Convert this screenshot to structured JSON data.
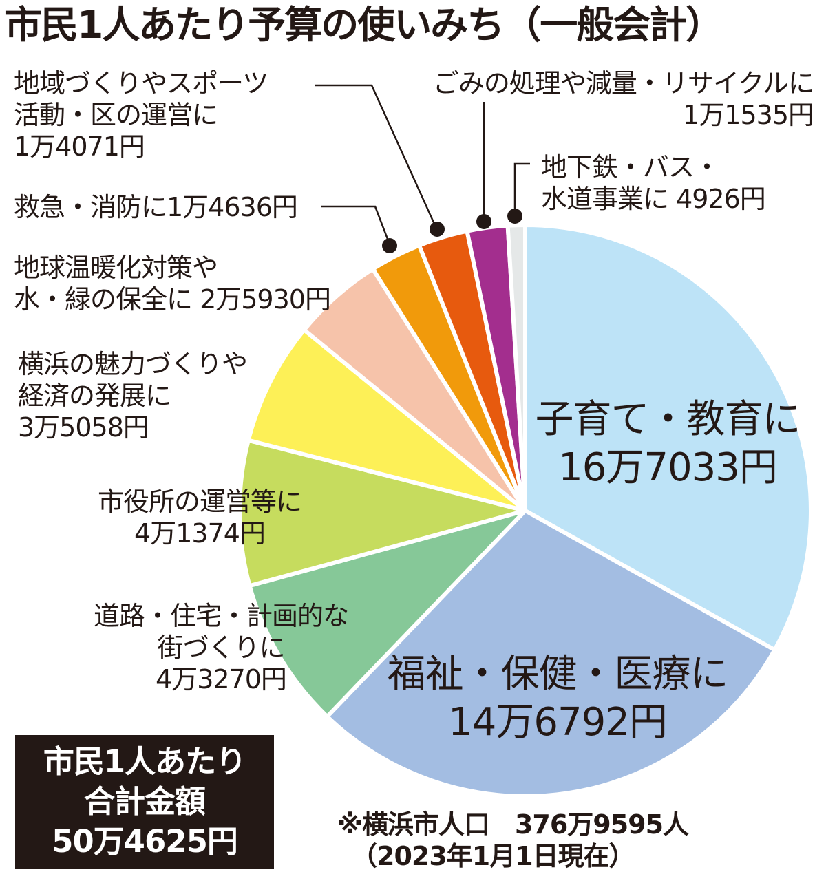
{
  "title": "市民1人あたり予算の使いみち（一般会計）",
  "chart_data": {
    "type": "pie",
    "title": "市民1人あたり予算の使いみち（一般会計）",
    "unit": "円",
    "start_angle": "12 o'clock",
    "direction": "clockwise",
    "categories": [
      "子育て・教育",
      "福祉・保健・医療",
      "道路・住宅・計画的な街づくり",
      "市役所の運営等",
      "横浜の魅力づくりや経済の発展",
      "地球温暖化対策や水・緑の保全",
      "救急・消防",
      "地域づくりやスポーツ活動・区の運営",
      "ごみの処理や減量・リサイクル",
      "地下鉄・バス・水道事業"
    ],
    "values": [
      167033,
      146792,
      43270,
      41374,
      35058,
      25930,
      14636,
      14071,
      11535,
      4926
    ],
    "colors": [
      "#bde3f7",
      "#a3bde2",
      "#86c898",
      "#c6dc5e",
      "#fdf057",
      "#f6c3aa",
      "#f19a0b",
      "#e75a0e",
      "#a32e8e",
      "#e5e8e8"
    ],
    "total": 504625,
    "total_label": "50万4625円",
    "legend": "none (direct labels with leader lines)"
  },
  "labels": {
    "children": {
      "line1": "子育て・教育に",
      "line2": "16万7033円"
    },
    "welfare": {
      "line1": "福祉・保健・医療に",
      "line2": "14万6792円"
    },
    "roads": {
      "line1": "道路・住宅・計画的な",
      "line2": "街づくりに",
      "line3": "4万3270円"
    },
    "city_hall": {
      "line1": "市役所の運営等に",
      "line2": "4万1374円"
    },
    "economy": {
      "line1": "横浜の魅力づくりや",
      "line2": "経済の発展に",
      "line3": "3万5058円"
    },
    "environment": {
      "line1": "地球温暖化対策や",
      "line2": "水・緑の保全に 2万5930円"
    },
    "fire": {
      "line1": "救急・消防に1万4636円"
    },
    "community": {
      "line1": "地域づくりやスポーツ",
      "line2": "活動・区の運営に",
      "line3": "1万4071円"
    },
    "garbage": {
      "line1": "ごみの処理や減量・リサイクルに",
      "line2": "1万1535円"
    },
    "transit": {
      "line1": "地下鉄・バス・",
      "line2": "水道事業に 4926円"
    }
  },
  "total_box": {
    "line1": "市民1人あたり",
    "line2": "合計金額",
    "line3": "50万4625円"
  },
  "footnote": {
    "line1": "※横浜市人口　376万9595人",
    "line2": "（2023年1月1日現在）"
  }
}
